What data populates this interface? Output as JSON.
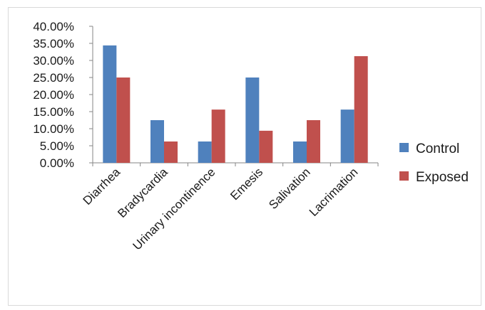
{
  "chart_data": {
    "type": "bar",
    "categories": [
      "Diarrhea",
      "Bradycardia",
      "Urinary incontinence",
      "Emesis",
      "Salivation",
      "Lacrimation"
    ],
    "series": [
      {
        "name": "Control",
        "values": [
          34.4,
          12.5,
          6.25,
          25.0,
          6.25,
          15.6
        ],
        "color": "#4f81bd"
      },
      {
        "name": "Exposed",
        "values": [
          25.0,
          6.25,
          15.6,
          9.4,
          12.5,
          31.25
        ],
        "color": "#c0504d"
      }
    ],
    "y_ticks": [
      "0.00%",
      "5.00%",
      "10.00%",
      "15.00%",
      "20.00%",
      "25.00%",
      "30.00%",
      "35.00%",
      "40.00%"
    ],
    "ylim": [
      0,
      40
    ],
    "grid": false,
    "legend_position": "right"
  }
}
